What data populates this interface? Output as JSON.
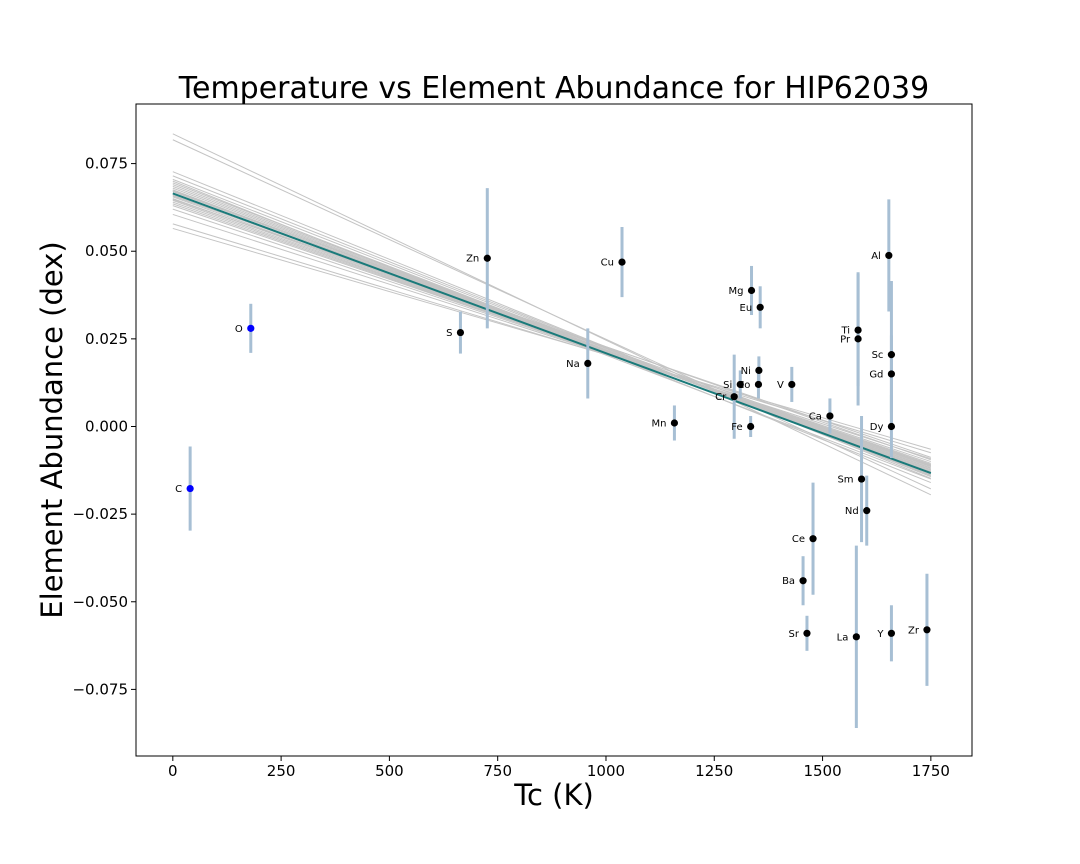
{
  "chart_data": {
    "type": "scatter",
    "title": "Temperature vs Element Abundance for HIP62039",
    "xlabel": "Tc (K)",
    "ylabel": "Element Abundance (dex)",
    "xlim": [
      -85,
      1845
    ],
    "ylim": [
      -0.094,
      0.092
    ],
    "xticks": [
      0,
      250,
      500,
      750,
      1000,
      1250,
      1500,
      1750
    ],
    "xtick_labels": [
      "0",
      "250",
      "500",
      "750",
      "1000",
      "1250",
      "1500",
      "1750"
    ],
    "yticks": [
      -0.075,
      -0.05,
      -0.025,
      0.0,
      0.025,
      0.05,
      0.075
    ],
    "ytick_labels": [
      "−0.075",
      "−0.050",
      "−0.025",
      "0.000",
      "0.025",
      "0.050",
      "0.075"
    ],
    "grid": false,
    "colors": {
      "point": "#000000",
      "volatile_point": "#0000ff",
      "errorbar": "#a7bfd4",
      "fit_line": "#1a7a7a",
      "sample_lines": "#c4c4c4"
    },
    "best_fit": {
      "x": [
        0,
        1750
      ],
      "y": [
        0.0665,
        -0.0133
      ]
    },
    "sample_fits": [
      [
        0.0835,
        -0.0195
      ],
      [
        0.0818,
        -0.0178
      ],
      [
        0.0727,
        -0.0148
      ],
      [
        0.0715,
        -0.0143
      ],
      [
        0.0705,
        -0.014
      ],
      [
        0.0695,
        -0.0138
      ],
      [
        0.069,
        -0.0135
      ],
      [
        0.0685,
        -0.0133
      ],
      [
        0.068,
        -0.013
      ],
      [
        0.0675,
        -0.0128
      ],
      [
        0.067,
        -0.0125
      ],
      [
        0.0665,
        -0.0123
      ],
      [
        0.066,
        -0.012
      ],
      [
        0.0655,
        -0.0118
      ],
      [
        0.065,
        -0.0115
      ],
      [
        0.0645,
        -0.0113
      ],
      [
        0.064,
        -0.011
      ],
      [
        0.0635,
        -0.0108
      ],
      [
        0.063,
        -0.0105
      ],
      [
        0.062,
        -0.01
      ],
      [
        0.0605,
        -0.0092
      ],
      [
        0.0578,
        -0.0075
      ],
      [
        0.0565,
        -0.0065
      ],
      [
        0.07,
        -0.016
      ],
      [
        0.0675,
        -0.015
      ],
      [
        0.0658,
        -0.0095
      ],
      [
        0.0648,
        -0.0088
      ],
      [
        0.0672,
        -0.0112
      ]
    ],
    "points": [
      {
        "label": "C",
        "x": 40,
        "y": -0.0177,
        "err": 0.012,
        "volatile": true
      },
      {
        "label": "O",
        "x": 180,
        "y": 0.028,
        "err": 0.007,
        "volatile": true
      },
      {
        "label": "S",
        "x": 664,
        "y": 0.0268,
        "err": 0.006
      },
      {
        "label": "Zn",
        "x": 726,
        "y": 0.048,
        "err": 0.02
      },
      {
        "label": "Na",
        "x": 958,
        "y": 0.018,
        "err": 0.01
      },
      {
        "label": "Cu",
        "x": 1037,
        "y": 0.0469,
        "err": 0.01
      },
      {
        "label": "Mn",
        "x": 1158,
        "y": 0.001,
        "err": 0.005
      },
      {
        "label": "Cr",
        "x": 1296,
        "y": 0.0085,
        "err": 0.012
      },
      {
        "label": "Si",
        "x": 1310,
        "y": 0.012,
        "err": 0.004
      },
      {
        "label": "Fe",
        "x": 1334,
        "y": 0.0,
        "err": 0.003
      },
      {
        "label": "Mg",
        "x": 1336,
        "y": 0.0388,
        "err": 0.007
      },
      {
        "label": "Co",
        "x": 1352,
        "y": 0.012,
        "err": 0.004
      },
      {
        "label": "Ni",
        "x": 1353,
        "y": 0.016,
        "err": 0.004
      },
      {
        "label": "Eu",
        "x": 1356,
        "y": 0.034,
        "err": 0.006
      },
      {
        "label": "V",
        "x": 1429,
        "y": 0.012,
        "err": 0.005
      },
      {
        "label": "Ba",
        "x": 1455,
        "y": -0.044,
        "err": 0.007
      },
      {
        "label": "Sr",
        "x": 1464,
        "y": -0.059,
        "err": 0.005
      },
      {
        "label": "Ce",
        "x": 1478,
        "y": -0.032,
        "err": 0.016
      },
      {
        "label": "Ca",
        "x": 1517,
        "y": 0.003,
        "err": 0.005
      },
      {
        "label": "La",
        "x": 1578,
        "y": -0.06,
        "err": 0.026
      },
      {
        "label": "Ti",
        "x": 1582,
        "y": 0.0275,
        "err": 0.016
      },
      {
        "label": "Pr",
        "x": 1582,
        "y": 0.025,
        "err": 0.019
      },
      {
        "label": "Sm",
        "x": 1590,
        "y": -0.015,
        "err": 0.018
      },
      {
        "label": "Nd",
        "x": 1602,
        "y": -0.024,
        "err": 0.01
      },
      {
        "label": "Al",
        "x": 1653,
        "y": 0.0488,
        "err": 0.016
      },
      {
        "label": "Y",
        "x": 1659,
        "y": -0.059,
        "err": 0.008
      },
      {
        "label": "Dy",
        "x": 1659,
        "y": 0.0,
        "err": 0.009
      },
      {
        "label": "Gd",
        "x": 1659,
        "y": 0.015,
        "err": 0.011
      },
      {
        "label": "Sc",
        "x": 1659,
        "y": 0.0205,
        "err": 0.021
      },
      {
        "label": "Zr",
        "x": 1741,
        "y": -0.058,
        "err": 0.016
      }
    ]
  }
}
